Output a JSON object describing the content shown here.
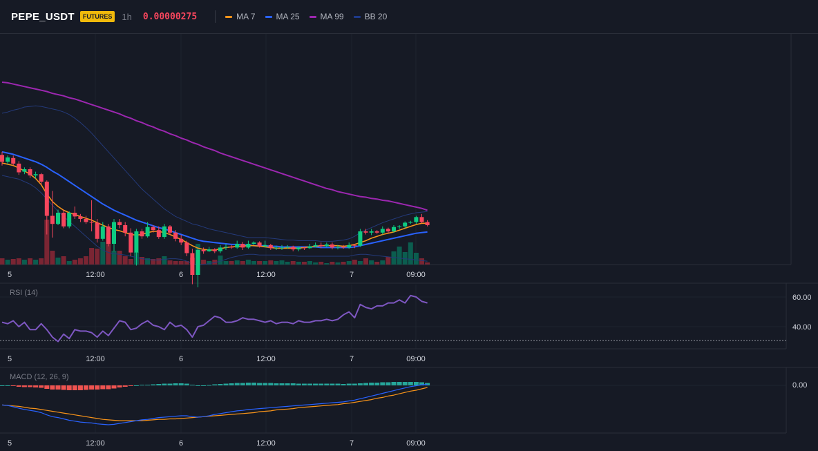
{
  "header": {
    "symbol": "PEPE_USDT",
    "badge": "FUTURES",
    "interval": "1h",
    "price": "0.00000275",
    "legend": [
      {
        "label": "MA 7",
        "color": "#f7931a"
      },
      {
        "label": "MA 25",
        "color": "#2962ff"
      },
      {
        "label": "MA 99",
        "color": "#9c27b0"
      },
      {
        "label": "BB 20",
        "color": "#1e3a8a"
      }
    ]
  },
  "colors": {
    "up": "#0ecb81",
    "down": "#f6465d",
    "vol_up": "#0b5d4f",
    "vol_down": "#7a2533",
    "ma7": "#f7931a",
    "ma25": "#2962ff",
    "ma99": "#9c27b0",
    "bb": "#243a7a",
    "rsi": "#7e57c2",
    "macd": "#2962ff",
    "signal": "#f7931a",
    "hist_up": "#26a69a",
    "hist_down": "#ef5350"
  },
  "time_axis": [
    "5",
    "12:00",
    "6",
    "12:00",
    "7",
    "09:00"
  ],
  "rsi": {
    "label": "RSI (14)",
    "ticks": [
      "60.00",
      "40.00"
    ]
  },
  "macd": {
    "label": "MACD (12, 26, 9)",
    "ticks": [
      "0.00"
    ]
  },
  "chart_data": {
    "type": "candlestick",
    "candles": [
      [
        0.53,
        0.42,
        0.58,
        0.36
      ],
      [
        0.42,
        0.49,
        0.52,
        0.38
      ],
      [
        0.48,
        0.39,
        0.52,
        0.36
      ],
      [
        0.39,
        0.25,
        0.43,
        0.21
      ],
      [
        0.26,
        0.3,
        0.33,
        0.22
      ],
      [
        0.3,
        0.2,
        0.33,
        0.16
      ],
      [
        0.2,
        0.22,
        0.26,
        0.15
      ],
      [
        0.22,
        0.1,
        0.24,
        0.05
      ],
      [
        0.1,
        -0.45,
        0.12,
        -0.75
      ],
      [
        -0.45,
        -0.58,
        -0.05,
        -0.8
      ],
      [
        -0.58,
        -0.4,
        -0.35,
        -0.6
      ],
      [
        -0.4,
        -0.62,
        -0.35,
        -0.65
      ],
      [
        -0.62,
        -0.4,
        -0.38,
        -0.65
      ],
      [
        -0.4,
        -0.46,
        -0.3,
        -0.5
      ],
      [
        -0.46,
        -0.5,
        -0.42,
        -0.55
      ],
      [
        -0.5,
        -0.55,
        -0.45,
        -0.58
      ],
      [
        -0.55,
        -0.56,
        -0.2,
        -0.7
      ],
      [
        -0.56,
        -0.82,
        -0.5,
        -0.88
      ],
      [
        -0.82,
        -0.62,
        -0.55,
        -0.85
      ],
      [
        -0.62,
        -0.9,
        -0.58,
        -0.94
      ],
      [
        -0.9,
        -0.55,
        -0.5,
        -1.02
      ],
      [
        -0.55,
        -0.6,
        -0.5,
        -0.65
      ],
      [
        -0.6,
        -0.72,
        -0.55,
        -0.78
      ],
      [
        -0.72,
        -1.04,
        -0.65,
        -1.1
      ],
      [
        -1.04,
        -0.7,
        -0.66,
        -1.25
      ],
      [
        -0.7,
        -0.78,
        -0.66,
        -0.82
      ],
      [
        -0.78,
        -0.63,
        -0.55,
        -0.8
      ],
      [
        -0.63,
        -0.68,
        -0.6,
        -0.72
      ],
      [
        -0.68,
        -0.79,
        -0.62,
        -0.82
      ],
      [
        -0.79,
        -0.62,
        -0.58,
        -0.82
      ],
      [
        -0.62,
        -0.72,
        -0.6,
        -0.76
      ],
      [
        -0.72,
        -0.82,
        -0.68,
        -0.86
      ],
      [
        -0.82,
        -0.88,
        -0.76,
        -0.92
      ],
      [
        -0.88,
        -1.05,
        -0.85,
        -1.1
      ],
      [
        -1.05,
        -1.4,
        -0.98,
        -1.55
      ],
      [
        -1.4,
        -1.0,
        -0.98,
        -1.6
      ],
      [
        -1.0,
        -1.02,
        -0.96,
        -1.06
      ],
      [
        -1.02,
        -0.99,
        -0.95,
        -1.03
      ],
      [
        -0.99,
        -1.02,
        -0.97,
        -1.05
      ],
      [
        -1.02,
        -0.96,
        -0.92,
        -1.05
      ],
      [
        -0.96,
        -0.95,
        -0.9,
        -1.0
      ],
      [
        -0.95,
        -0.96,
        -0.92,
        -0.98
      ],
      [
        -0.96,
        -0.9,
        -0.85,
        -0.98
      ],
      [
        -0.9,
        -0.96,
        -0.87,
        -1.0
      ],
      [
        -0.96,
        -0.9,
        -0.85,
        -0.98
      ],
      [
        -0.9,
        -0.88,
        -0.86,
        -0.92
      ],
      [
        -0.88,
        -0.94,
        -0.86,
        -0.96
      ],
      [
        -0.94,
        -0.92,
        -0.85,
        -0.96
      ],
      [
        -0.92,
        -0.97,
        -0.9,
        -1.0
      ],
      [
        -0.97,
        -0.96,
        -0.93,
        -1.0
      ],
      [
        -0.96,
        -0.96,
        -0.92,
        -1.0
      ],
      [
        -0.96,
        -0.95,
        -0.92,
        -0.98
      ],
      [
        -0.95,
        -0.99,
        -0.93,
        -1.02
      ],
      [
        -0.99,
        -0.96,
        -0.94,
        -1.02
      ],
      [
        -0.96,
        -0.97,
        -0.95,
        -1.0
      ],
      [
        -0.97,
        -0.94,
        -0.9,
        -0.98
      ],
      [
        -0.94,
        -0.92,
        -0.88,
        -0.96
      ],
      [
        -0.92,
        -0.94,
        -0.88,
        -0.97
      ],
      [
        -0.94,
        -0.91,
        -0.88,
        -0.95
      ],
      [
        -0.91,
        -0.96,
        -0.88,
        -0.99
      ],
      [
        -0.96,
        -0.95,
        -0.92,
        -0.99
      ],
      [
        -0.95,
        -0.96,
        -0.92,
        -0.98
      ],
      [
        -0.96,
        -0.92,
        -0.88,
        -0.98
      ],
      [
        -0.92,
        -0.93,
        -0.9,
        -0.97
      ],
      [
        -0.93,
        -0.7,
        -0.66,
        -0.95
      ],
      [
        -0.7,
        -0.72,
        -0.66,
        -0.75
      ],
      [
        -0.72,
        -0.7,
        -0.66,
        -0.76
      ],
      [
        -0.7,
        -0.72,
        -0.68,
        -0.74
      ],
      [
        -0.72,
        -0.66,
        -0.62,
        -0.75
      ],
      [
        -0.66,
        -0.7,
        -0.64,
        -0.73
      ],
      [
        -0.7,
        -0.63,
        -0.6,
        -0.72
      ],
      [
        -0.63,
        -0.62,
        -0.6,
        -0.66
      ],
      [
        -0.62,
        -0.56,
        -0.54,
        -0.65
      ],
      [
        -0.56,
        -0.55,
        -0.53,
        -0.58
      ],
      [
        -0.55,
        -0.47,
        -0.45,
        -0.58
      ],
      [
        -0.47,
        -0.55,
        -0.42,
        -0.57
      ],
      [
        -0.55,
        -0.6,
        -0.52,
        -0.62
      ]
    ],
    "ma7": [
      0.4,
      0.38,
      0.36,
      0.32,
      0.27,
      0.22,
      0.15,
      0.05,
      -0.1,
      -0.22,
      -0.3,
      -0.36,
      -0.4,
      -0.43,
      -0.46,
      -0.49,
      -0.52,
      -0.56,
      -0.6,
      -0.64,
      -0.67,
      -0.69,
      -0.72,
      -0.75,
      -0.76,
      -0.75,
      -0.72,
      -0.7,
      -0.7,
      -0.72,
      -0.75,
      -0.79,
      -0.83,
      -0.88,
      -0.93,
      -0.97,
      -0.99,
      -1.0,
      -1.0,
      -0.98,
      -0.96,
      -0.95,
      -0.94,
      -0.94,
      -0.93,
      -0.93,
      -0.94,
      -0.95,
      -0.96,
      -0.97,
      -0.97,
      -0.97,
      -0.97,
      -0.97,
      -0.96,
      -0.95,
      -0.94,
      -0.93,
      -0.93,
      -0.93,
      -0.93,
      -0.94,
      -0.93,
      -0.91,
      -0.88,
      -0.85,
      -0.81,
      -0.78,
      -0.75,
      -0.73,
      -0.71,
      -0.68,
      -0.65,
      -0.62,
      -0.59,
      -0.57,
      -0.57
    ],
    "ma25": [
      0.58,
      0.56,
      0.54,
      0.51,
      0.48,
      0.45,
      0.42,
      0.38,
      0.33,
      0.27,
      0.22,
      0.16,
      0.1,
      0.04,
      -0.02,
      -0.08,
      -0.14,
      -0.2,
      -0.26,
      -0.31,
      -0.36,
      -0.4,
      -0.44,
      -0.48,
      -0.52,
      -0.55,
      -0.58,
      -0.61,
      -0.64,
      -0.66,
      -0.69,
      -0.72,
      -0.75,
      -0.78,
      -0.81,
      -0.84,
      -0.86,
      -0.87,
      -0.88,
      -0.89,
      -0.9,
      -0.91,
      -0.91,
      -0.92,
      -0.92,
      -0.93,
      -0.93,
      -0.93,
      -0.94,
      -0.94,
      -0.95,
      -0.95,
      -0.95,
      -0.95,
      -0.95,
      -0.95,
      -0.95,
      -0.96,
      -0.96,
      -0.96,
      -0.96,
      -0.96,
      -0.96,
      -0.95,
      -0.93,
      -0.91,
      -0.89,
      -0.87,
      -0.85,
      -0.83,
      -0.81,
      -0.79,
      -0.77,
      -0.75,
      -0.73,
      -0.72,
      -0.71
    ],
    "ma99": [
      1.7,
      1.69,
      1.67,
      1.65,
      1.63,
      1.61,
      1.59,
      1.57,
      1.55,
      1.52,
      1.5,
      1.48,
      1.45,
      1.43,
      1.4,
      1.37,
      1.34,
      1.31,
      1.28,
      1.25,
      1.22,
      1.19,
      1.15,
      1.12,
      1.08,
      1.05,
      1.01,
      0.98,
      0.94,
      0.91,
      0.87,
      0.84,
      0.8,
      0.77,
      0.73,
      0.7,
      0.66,
      0.63,
      0.6,
      0.56,
      0.53,
      0.5,
      0.47,
      0.44,
      0.41,
      0.38,
      0.35,
      0.32,
      0.29,
      0.26,
      0.23,
      0.2,
      0.17,
      0.14,
      0.11,
      0.08,
      0.05,
      0.02,
      -0.01,
      -0.03,
      -0.06,
      -0.08,
      -0.1,
      -0.12,
      -0.14,
      -0.15,
      -0.17,
      -0.18,
      -0.2,
      -0.21,
      -0.23,
      -0.25,
      -0.27,
      -0.29,
      -0.31,
      -0.33,
      -0.36
    ],
    "bb_upper": [
      1.2,
      1.22,
      1.25,
      1.27,
      1.3,
      1.31,
      1.32,
      1.31,
      1.29,
      1.27,
      1.25,
      1.22,
      1.18,
      1.12,
      1.05,
      0.97,
      0.88,
      0.78,
      0.68,
      0.58,
      0.48,
      0.38,
      0.28,
      0.18,
      0.08,
      -0.02,
      -0.1,
      -0.18,
      -0.26,
      -0.34,
      -0.4,
      -0.46,
      -0.5,
      -0.54,
      -0.58,
      -0.6,
      -0.63,
      -0.66,
      -0.68,
      -0.7,
      -0.72,
      -0.74,
      -0.76,
      -0.78,
      -0.8,
      -0.8,
      -0.8,
      -0.8,
      -0.81,
      -0.82,
      -0.83,
      -0.84,
      -0.84,
      -0.85,
      -0.85,
      -0.85,
      -0.85,
      -0.86,
      -0.86,
      -0.86,
      -0.85,
      -0.84,
      -0.82,
      -0.78,
      -0.72,
      -0.68,
      -0.64,
      -0.6,
      -0.56,
      -0.53,
      -0.5,
      -0.47,
      -0.44,
      -0.42,
      -0.4,
      -0.39,
      -0.38
    ],
    "bb_lower": [
      0.2,
      0.18,
      0.16,
      0.14,
      0.1,
      0.06,
      0.0,
      -0.08,
      -0.18,
      -0.28,
      -0.38,
      -0.46,
      -0.54,
      -0.62,
      -0.7,
      -0.78,
      -0.86,
      -0.94,
      -1.0,
      -1.04,
      -1.06,
      -1.07,
      -1.08,
      -1.1,
      -1.12,
      -1.14,
      -1.15,
      -1.16,
      -1.16,
      -1.15,
      -1.14,
      -1.14,
      -1.15,
      -1.18,
      -1.22,
      -1.24,
      -1.23,
      -1.22,
      -1.2,
      -1.18,
      -1.15,
      -1.12,
      -1.1,
      -1.08,
      -1.07,
      -1.07,
      -1.08,
      -1.08,
      -1.08,
      -1.08,
      -1.08,
      -1.09,
      -1.09,
      -1.1,
      -1.1,
      -1.1,
      -1.1,
      -1.1,
      -1.1,
      -1.1,
      -1.1,
      -1.1,
      -1.1,
      -1.08,
      -1.07,
      -1.07,
      -1.08,
      -1.09,
      -1.1,
      -1.11,
      -1.12,
      -1.13,
      -1.14,
      -1.15,
      -1.16,
      -1.17,
      -1.18
    ],
    "volume": [
      9,
      7,
      8,
      9,
      7,
      9,
      7,
      9,
      65,
      20,
      10,
      12,
      5,
      7,
      9,
      12,
      24,
      23,
      33,
      45,
      20,
      20,
      12,
      8,
      18,
      11,
      9,
      8,
      9,
      12,
      6,
      5,
      5,
      5,
      10,
      30,
      7,
      5,
      7,
      13,
      5,
      5,
      6,
      5,
      7,
      5,
      5,
      5,
      6,
      5,
      6,
      4,
      5,
      4,
      4,
      5,
      3,
      4,
      2,
      4,
      3,
      4,
      5,
      7,
      5,
      9,
      6,
      4,
      6,
      11,
      19,
      26,
      18,
      32,
      17,
      9,
      3
    ],
    "rsi": [
      43,
      42,
      44,
      40,
      43,
      38,
      38,
      42,
      38,
      33,
      30,
      35,
      32,
      38,
      37,
      37,
      36,
      33,
      37,
      34,
      39,
      44,
      43,
      38,
      39,
      42,
      44,
      41,
      40,
      38,
      43,
      40,
      41,
      38,
      33,
      40,
      41,
      44,
      47,
      46,
      43,
      43,
      44,
      46,
      45,
      45,
      44,
      43,
      44,
      42,
      43,
      43,
      42,
      44,
      43,
      43,
      44,
      44,
      45,
      44,
      45,
      48,
      50,
      46,
      55,
      53,
      52,
      54,
      54,
      56,
      56,
      58,
      56,
      61,
      60,
      57,
      56
    ],
    "macd_line": [
      -0.02,
      -0.03,
      -0.06,
      -0.09,
      -0.12,
      -0.14,
      -0.16,
      -0.19,
      -0.24,
      -0.28,
      -0.3,
      -0.33,
      -0.36,
      -0.38,
      -0.4,
      -0.41,
      -0.42,
      -0.44,
      -0.45,
      -0.46,
      -0.45,
      -0.43,
      -0.41,
      -0.39,
      -0.37,
      -0.35,
      -0.34,
      -0.32,
      -0.3,
      -0.29,
      -0.28,
      -0.27,
      -0.26,
      -0.26,
      -0.28,
      -0.29,
      -0.28,
      -0.26,
      -0.23,
      -0.21,
      -0.19,
      -0.17,
      -0.15,
      -0.14,
      -0.12,
      -0.11,
      -0.1,
      -0.09,
      -0.08,
      -0.07,
      -0.06,
      -0.05,
      -0.04,
      -0.03,
      -0.02,
      -0.01,
      0.0,
      0.01,
      0.02,
      0.03,
      0.04,
      0.05,
      0.07,
      0.09,
      0.12,
      0.15,
      0.18,
      0.21,
      0.24,
      0.27,
      0.3,
      0.33,
      0.36,
      0.39,
      0.41,
      0.43,
      0.44
    ],
    "macd_signal": [
      -0.02,
      -0.03,
      -0.04,
      -0.05,
      -0.07,
      -0.09,
      -0.1,
      -0.12,
      -0.14,
      -0.16,
      -0.18,
      -0.2,
      -0.22,
      -0.24,
      -0.26,
      -0.28,
      -0.3,
      -0.32,
      -0.34,
      -0.35,
      -0.36,
      -0.37,
      -0.37,
      -0.37,
      -0.37,
      -0.37,
      -0.36,
      -0.35,
      -0.34,
      -0.34,
      -0.33,
      -0.33,
      -0.32,
      -0.31,
      -0.3,
      -0.29,
      -0.28,
      -0.27,
      -0.26,
      -0.25,
      -0.24,
      -0.23,
      -0.22,
      -0.21,
      -0.2,
      -0.19,
      -0.17,
      -0.16,
      -0.15,
      -0.13,
      -0.12,
      -0.11,
      -0.1,
      -0.08,
      -0.07,
      -0.06,
      -0.05,
      -0.04,
      -0.03,
      -0.02,
      -0.01,
      0.01,
      0.02,
      0.04,
      0.06,
      0.08,
      0.1,
      0.13,
      0.15,
      0.18,
      0.2,
      0.23,
      0.26,
      0.29,
      0.31,
      0.34,
      0.37
    ]
  }
}
